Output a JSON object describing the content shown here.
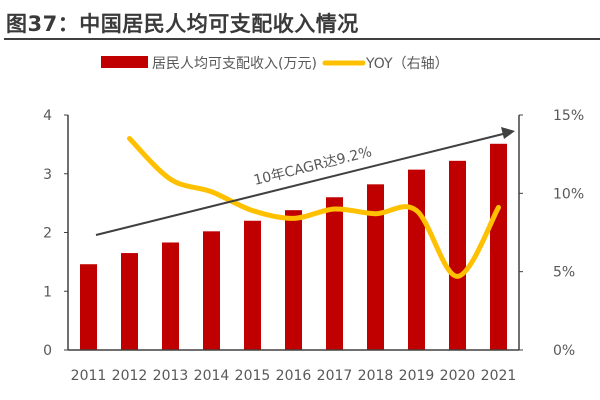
{
  "chart_data": {
    "type": "bar+line",
    "title": "图37：中国居民人均可支配收入情况",
    "categories": [
      "2011",
      "2012",
      "2013",
      "2014",
      "2015",
      "2016",
      "2017",
      "2018",
      "2019",
      "2020",
      "2021"
    ],
    "series": [
      {
        "name": "居民人均可支配收入(万元)",
        "type": "bar",
        "axis": "left",
        "color": "#C00000",
        "values": [
          1.46,
          1.65,
          1.83,
          2.02,
          2.2,
          2.38,
          2.6,
          2.82,
          3.07,
          3.22,
          3.51
        ]
      },
      {
        "name": "YOY（右轴）",
        "type": "line",
        "axis": "right",
        "color": "#FFC000",
        "smooth": true,
        "values": [
          null,
          13.5,
          10.9,
          10.1,
          8.9,
          8.4,
          9.0,
          8.7,
          8.9,
          4.7,
          9.1
        ]
      }
    ],
    "left_axis": {
      "ylim": [
        0,
        4
      ],
      "ticks": [
        "0",
        "1",
        "2",
        "3",
        "4"
      ]
    },
    "right_axis": {
      "ylim": [
        0,
        15
      ],
      "ticks": [
        "0%",
        "5%",
        "10%",
        "15%"
      ]
    },
    "annotation": {
      "text": "10年CAGR达9.2%",
      "arrow": true,
      "from_category": "2011",
      "to_category": "2021"
    },
    "legend": "top",
    "grid": false
  }
}
